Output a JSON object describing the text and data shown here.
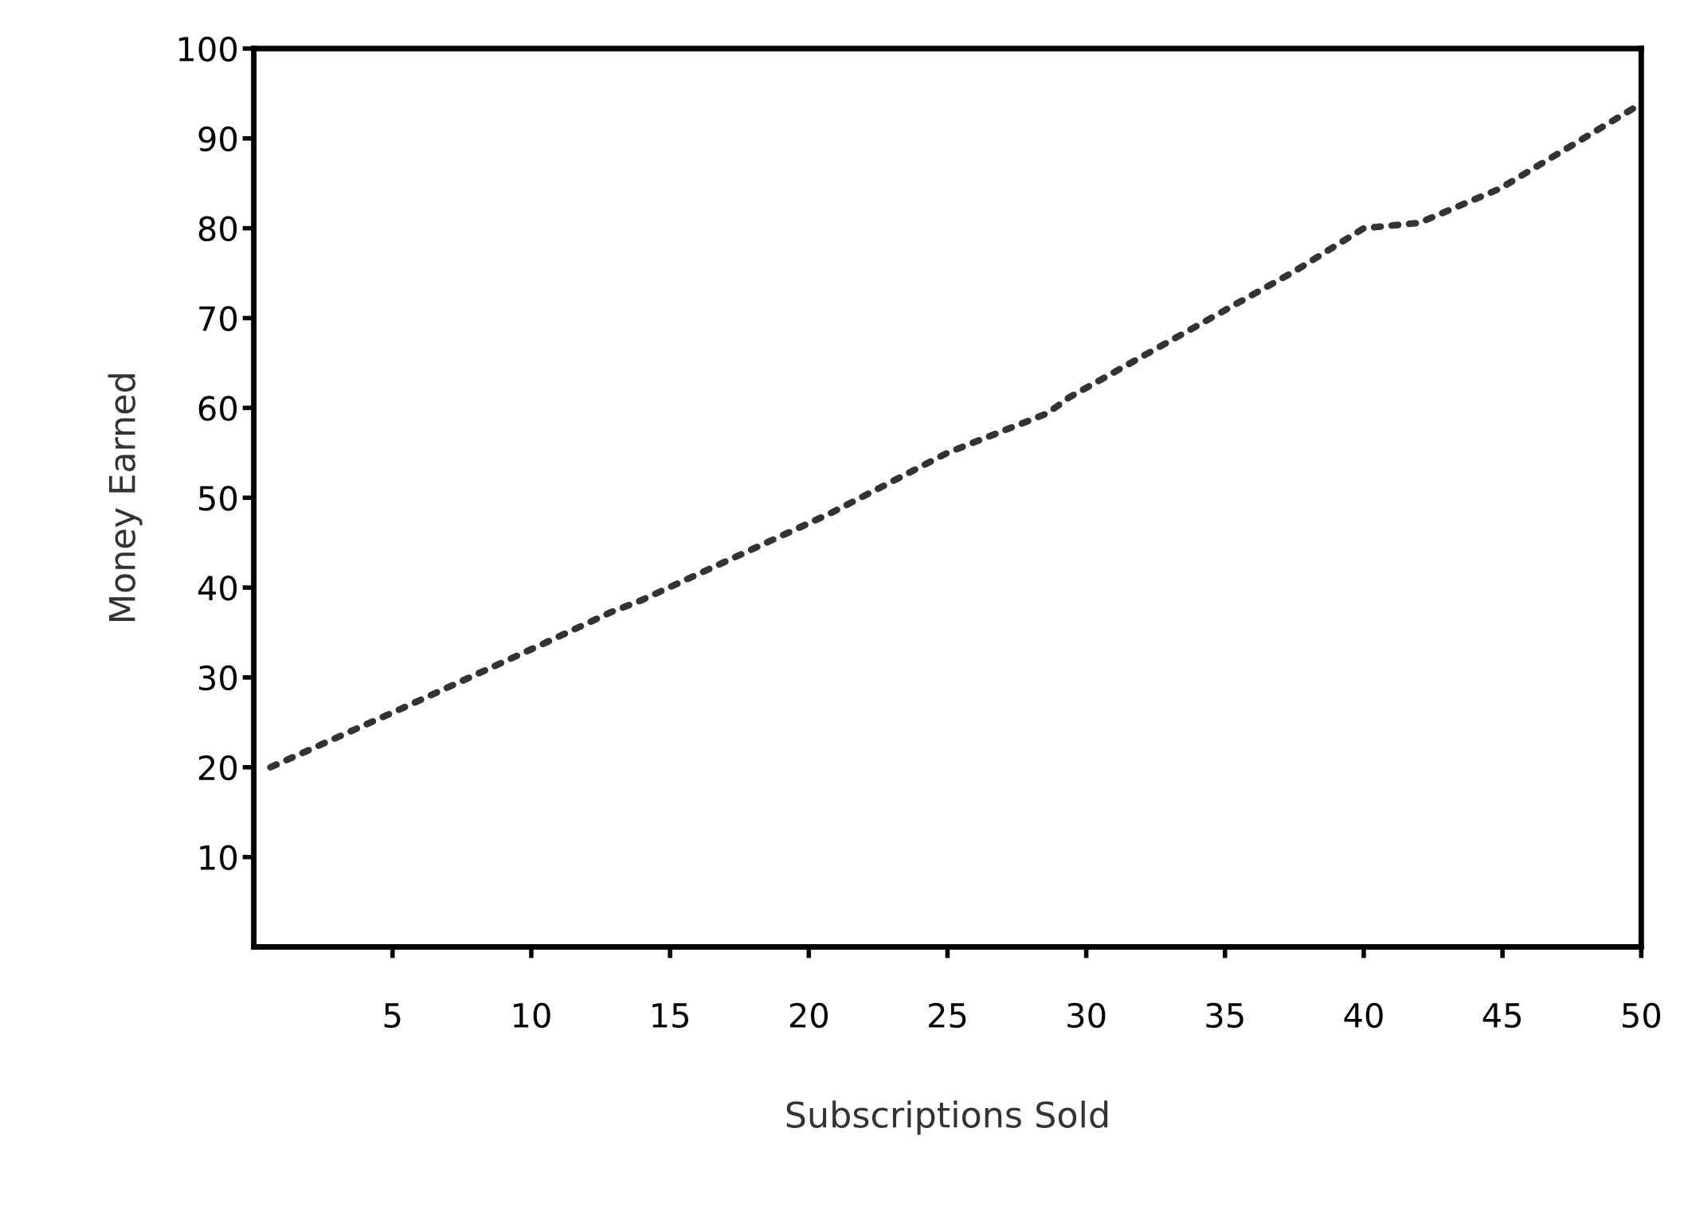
{
  "chart_data": {
    "type": "line",
    "xlabel": "Subscriptions Sold",
    "ylabel": "Money Earned",
    "x": [
      0.6,
      5.3,
      10.4,
      12.9,
      13.9,
      20.8,
      25,
      28.6,
      29.4,
      37.5,
      40,
      42,
      44.9,
      49.8
    ],
    "series": [
      {
        "color": "#333333",
        "values": [
          20,
          26.5,
          33.7,
          37.3,
          38.5,
          48.3,
          55,
          59.4,
          61.2,
          75.2,
          80,
          80.6,
          84.4,
          93.5
        ]
      }
    ],
    "xlim": [
      0,
      50
    ],
    "xticks": [
      5,
      10,
      15,
      20,
      25,
      30,
      35,
      40,
      45,
      50
    ],
    "ylim": [
      0,
      100
    ],
    "yticks": [
      10,
      20,
      30,
      40,
      50,
      60,
      70,
      80,
      90,
      100
    ],
    "grid": false,
    "legend": false,
    "marker": "none",
    "line_style": "dotted"
  }
}
